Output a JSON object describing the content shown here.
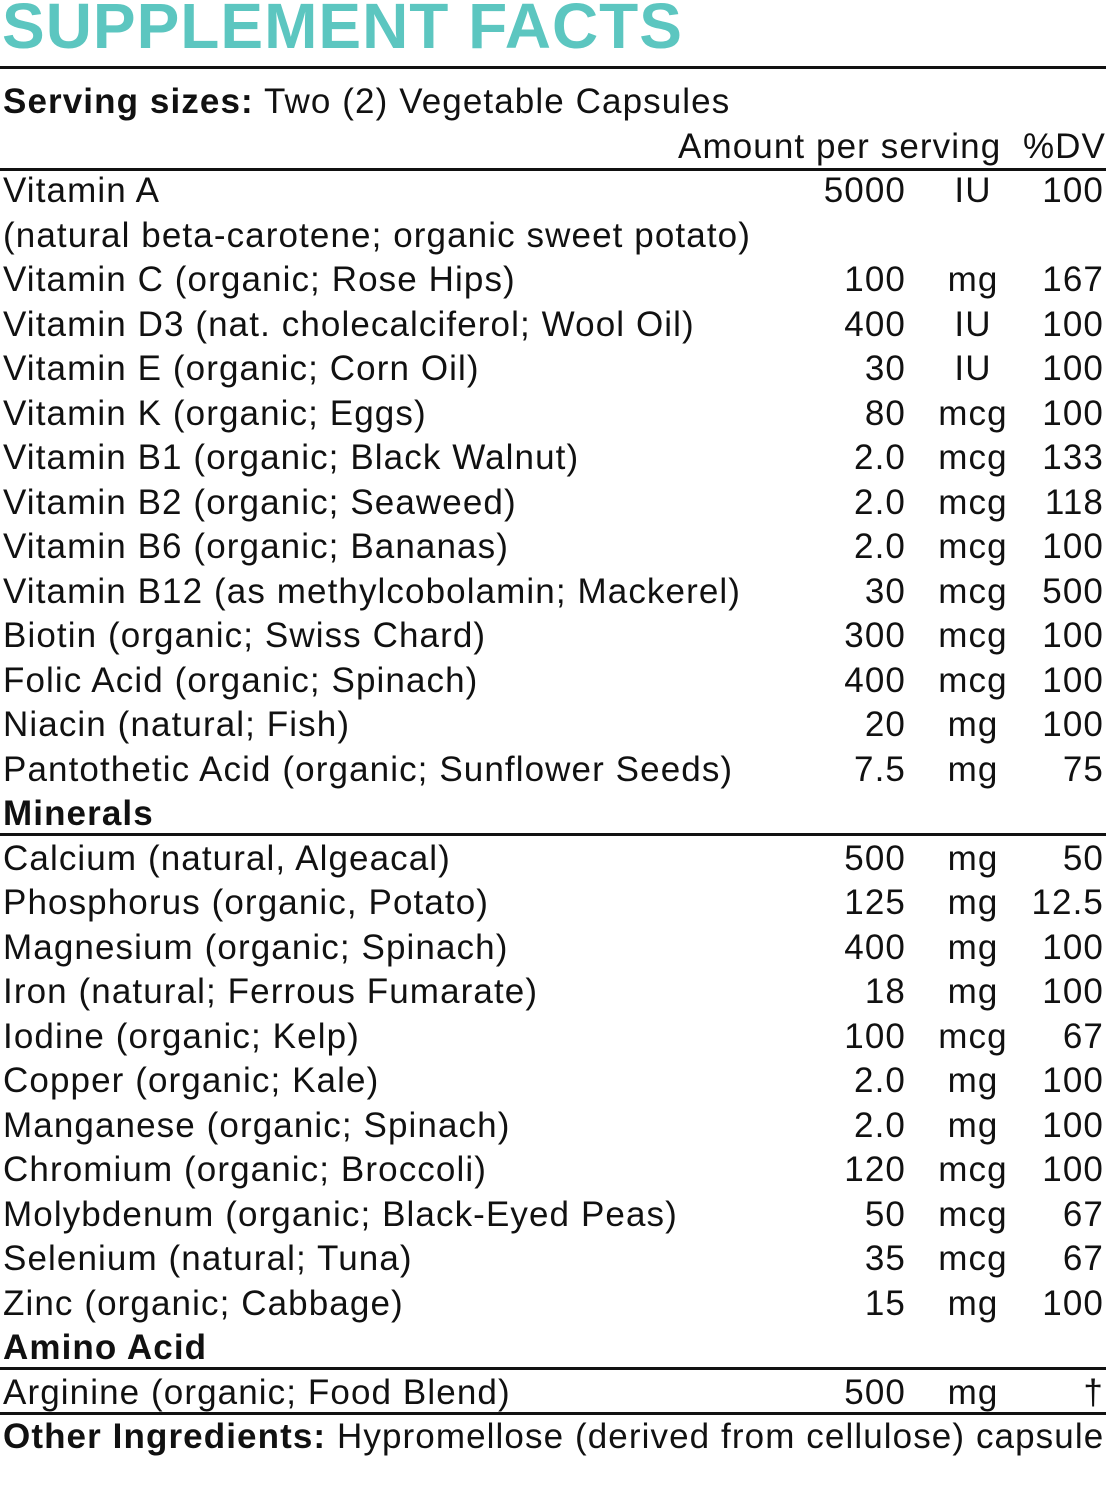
{
  "title": "SUPPLEMENT FACTS",
  "accent_color": "#5cc6c0",
  "serving": {
    "label": "Serving sizes:",
    "value": "Two (2) Vegetable Capsules"
  },
  "header": {
    "amount": "Amount per serving",
    "dv": "%DV"
  },
  "vitamins": [
    {
      "name": "Vitamin A",
      "amount": "5000",
      "unit": "IU",
      "dv": "100"
    },
    {
      "name": "(natural beta-carotene; organic sweet potato)",
      "amount": "",
      "unit": "",
      "dv": ""
    },
    {
      "name": "Vitamin C (organic; Rose Hips)",
      "amount": "100",
      "unit": "mg",
      "dv": "167"
    },
    {
      "name": "Vitamin D3 (nat. cholecalciferol; Wool Oil)",
      "amount": "400",
      "unit": "IU",
      "dv": "100"
    },
    {
      "name": "Vitamin E (organic; Corn Oil)",
      "amount": "30",
      "unit": "IU",
      "dv": "100"
    },
    {
      "name": "Vitamin K (organic; Eggs)",
      "amount": "80",
      "unit": "mcg",
      "dv": "100"
    },
    {
      "name": "Vitamin B1 (organic; Black Walnut)",
      "amount": "2.0",
      "unit": "mcg",
      "dv": "133"
    },
    {
      "name": "Vitamin B2 (organic; Seaweed)",
      "amount": "2.0",
      "unit": "mcg",
      "dv": "118"
    },
    {
      "name": "Vitamin B6 (organic; Bananas)",
      "amount": "2.0",
      "unit": "mcg",
      "dv": "100"
    },
    {
      "name": "Vitamin B12 (as methylcobolamin; Mackerel)",
      "amount": "30",
      "unit": "mcg",
      "dv": "500"
    },
    {
      "name": "Biotin (organic; Swiss Chard)",
      "amount": "300",
      "unit": "mcg",
      "dv": "100"
    },
    {
      "name": "Folic Acid (organic; Spinach)",
      "amount": "400",
      "unit": "mcg",
      "dv": "100"
    },
    {
      "name": "Niacin (natural; Fish)",
      "amount": "20",
      "unit": "mg",
      "dv": "100"
    },
    {
      "name": "Pantothetic Acid (organic; Sunflower Seeds)",
      "amount": "7.5",
      "unit": "mg",
      "dv": "75"
    }
  ],
  "minerals_heading": "Minerals",
  "minerals": [
    {
      "name": "Calcium (natural, Algeacal)",
      "amount": "500",
      "unit": "mg",
      "dv": "50"
    },
    {
      "name": "Phosphorus (organic, Potato)",
      "amount": "125",
      "unit": "mg",
      "dv": "12.5"
    },
    {
      "name": "Magnesium (organic; Spinach)",
      "amount": "400",
      "unit": "mg",
      "dv": "100"
    },
    {
      "name": "Iron (natural; Ferrous Fumarate)",
      "amount": "18",
      "unit": "mg",
      "dv": "100"
    },
    {
      "name": "Iodine (organic; Kelp)",
      "amount": "100",
      "unit": "mcg",
      "dv": "67"
    },
    {
      "name": "Copper (organic; Kale)",
      "amount": "2.0",
      "unit": "mg",
      "dv": "100"
    },
    {
      "name": "Manganese (organic; Spinach)",
      "amount": "2.0",
      "unit": "mg",
      "dv": "100"
    },
    {
      "name": "Chromium (organic; Broccoli)",
      "amount": "120",
      "unit": "mcg",
      "dv": "100"
    },
    {
      "name": "Molybdenum (organic; Black-Eyed Peas)",
      "amount": "50",
      "unit": "mcg",
      "dv": "67"
    },
    {
      "name": "Selenium (natural; Tuna)",
      "amount": "35",
      "unit": "mcg",
      "dv": "67"
    },
    {
      "name": "Zinc (organic; Cabbage)",
      "amount": "15",
      "unit": "mg",
      "dv": "100"
    }
  ],
  "amino_heading": "Amino Acid",
  "amino": [
    {
      "name": "Arginine (organic; Food Blend)",
      "amount": "500",
      "unit": "mg",
      "dv": "†"
    }
  ],
  "other": {
    "label": "Other Ingredients:",
    "value": "Hypromellose (derived from cellulose) capsule"
  }
}
